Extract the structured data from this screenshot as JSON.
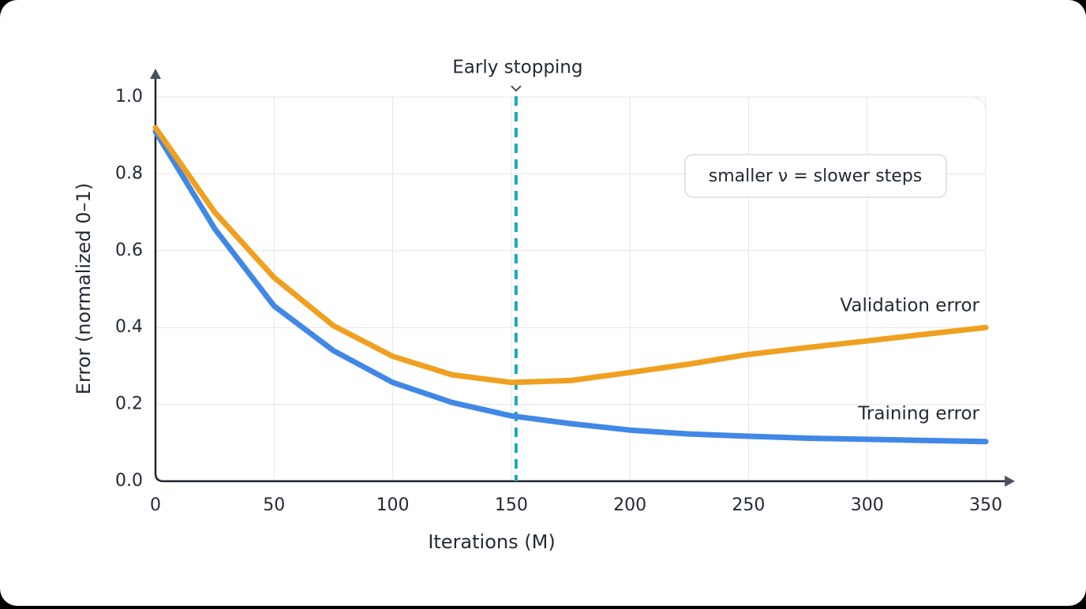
{
  "chart_data": {
    "type": "line",
    "x": [
      0,
      25,
      50,
      75,
      100,
      125,
      150,
      175,
      200,
      225,
      250,
      275,
      300,
      325,
      350
    ],
    "series": [
      {
        "name": "Training error",
        "color": "#4188e6",
        "label_color": "#1f4e8a",
        "values": [
          0.91,
          0.657,
          0.456,
          0.34,
          0.257,
          0.205,
          0.17,
          0.15,
          0.133,
          0.123,
          0.117,
          0.112,
          0.109,
          0.106,
          0.103
        ]
      },
      {
        "name": "Validation error",
        "color": "#f0a020",
        "label_color": "#c8851a",
        "values": [
          0.92,
          0.7,
          0.53,
          0.405,
          0.325,
          0.277,
          0.257,
          0.262,
          0.283,
          0.305,
          0.33,
          0.348,
          0.365,
          0.383,
          0.4
        ]
      }
    ],
    "xlabel": "Iterations (M)",
    "ylabel": "Error (normalized 0–1)",
    "xlim": [
      0,
      350
    ],
    "ylim": [
      0,
      1
    ],
    "xticks": [
      0,
      50,
      100,
      150,
      200,
      250,
      300,
      350
    ],
    "yticks": [
      {
        "value": 0,
        "label": "0.0"
      },
      0.2,
      0.4,
      0.6,
      0.8,
      {
        "value": 1,
        "label": "1.0"
      }
    ],
    "grid": true,
    "early_stopping": {
      "x": 152,
      "label": "Early stopping",
      "color": "#1ba8bd"
    },
    "note": "smaller ν = slower steps"
  }
}
